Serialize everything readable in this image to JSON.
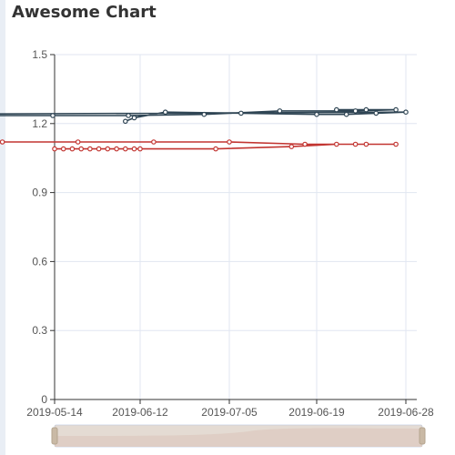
{
  "title": "Awesome Chart",
  "chart_data": {
    "type": "line",
    "title": "Awesome Chart",
    "xlabel": "",
    "ylabel": "",
    "ylim": [
      0,
      1.5
    ],
    "y_ticks": [
      "0",
      "0.3",
      "0.6",
      "0.9",
      "1.2",
      "1.5"
    ],
    "x_ticks": [
      "2019-05-14",
      "2019-06-12",
      "2019-07-05",
      "2019-06-19",
      "2019-06-28"
    ],
    "grid": true,
    "legend": "none",
    "data_zoom_slider": true,
    "series": [
      {
        "color": "#c23531",
        "points": [
          [
            "2019-05-14",
            1.09
          ],
          [
            "2019-05-17",
            1.09
          ],
          [
            "2019-05-20",
            1.09
          ],
          [
            "2019-05-23",
            1.09
          ],
          [
            "2019-05-26",
            1.09
          ],
          [
            "2019-05-29",
            1.09
          ],
          [
            "2019-06-01",
            1.09
          ],
          [
            "2019-06-04",
            1.09
          ],
          [
            "2019-06-07",
            1.09
          ],
          [
            "2019-06-10",
            1.09
          ],
          [
            "2019-06-12",
            1.09
          ],
          [
            "2019-06-15",
            1.09
          ],
          [
            "2019-06-18",
            1.1
          ],
          [
            "2019-06-21",
            1.11
          ],
          [
            "2019-06-24",
            1.11
          ],
          [
            "2019-06-27",
            1.11
          ],
          [
            "2019-06-30",
            1.11
          ],
          [
            "2019-07-02",
            1.11
          ],
          [
            "2019-07-05",
            1.12
          ],
          [
            "2019-07-08",
            1.12
          ],
          [
            "2019-07-11",
            1.12
          ],
          [
            "2019-07-14",
            1.12
          ],
          [
            "2019-07-17",
            1.12
          ],
          [
            "2019-07-20",
            1.12
          ],
          [
            "2019-07-23",
            1.11
          ]
        ]
      },
      {
        "color": "#2f4554",
        "points": [
          [
            "2019-06-21",
            1.26
          ],
          [
            "2019-06-24",
            1.26
          ],
          [
            "2019-06-27",
            1.26
          ],
          [
            "2019-06-30",
            1.255
          ],
          [
            "2019-07-03",
            1.255
          ],
          [
            "2019-07-06",
            1.24
          ],
          [
            "2019-07-09",
            1.235
          ],
          [
            "2019-07-12",
            1.235
          ],
          [
            "2019-07-15",
            1.235
          ],
          [
            "2019-07-18",
            1.24
          ],
          [
            "2019-06-28",
            1.25
          ],
          [
            "2019-06-25",
            1.245
          ],
          [
            "2019-06-22",
            1.24
          ],
          [
            "2019-06-19",
            1.24
          ],
          [
            "2019-06-16",
            1.245
          ],
          [
            "2019-06-13",
            1.25
          ],
          [
            "2019-06-10",
            1.225
          ],
          [
            "2019-06-07",
            1.21
          ]
        ]
      }
    ]
  }
}
